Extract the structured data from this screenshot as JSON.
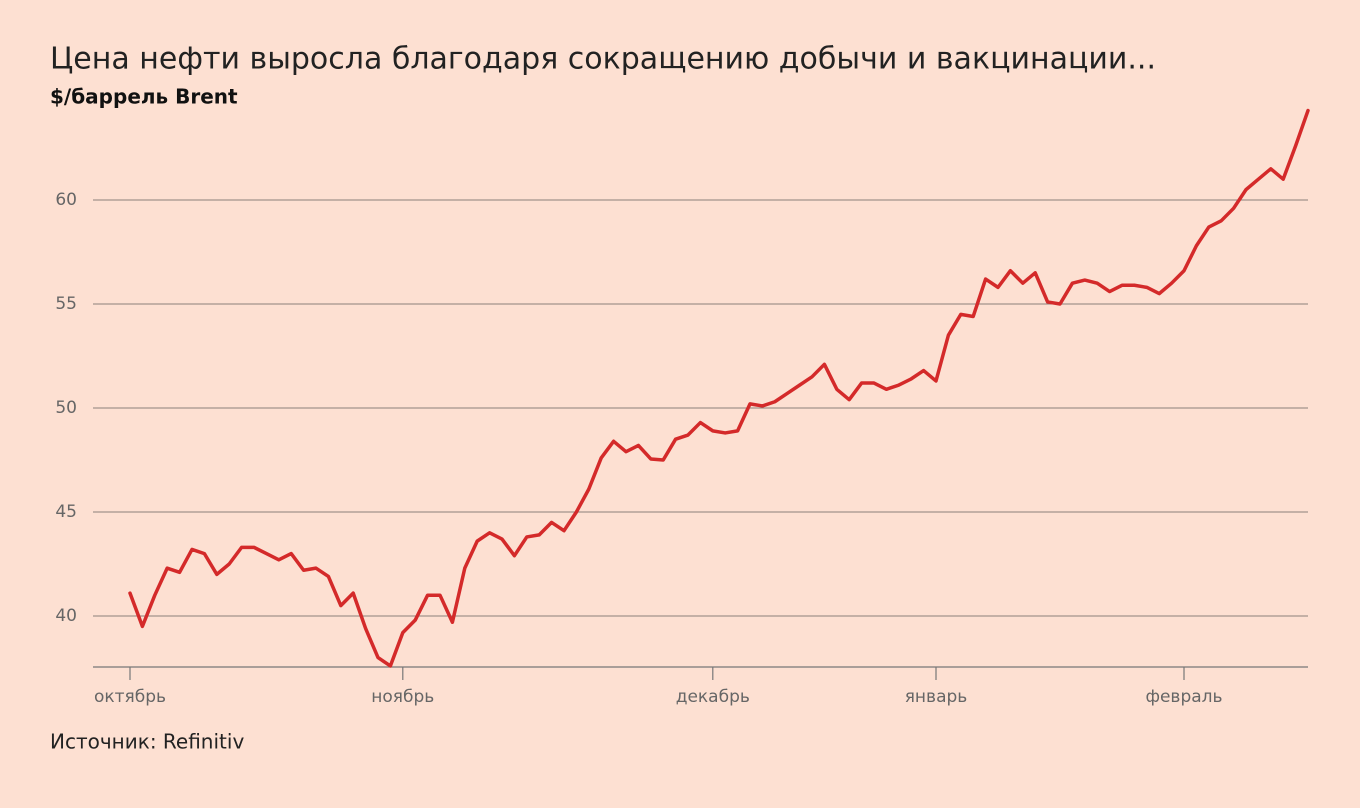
{
  "chart_data": {
    "type": "line",
    "title": "Цена нефти выросла благодаря сокращению добычи и вакцинации...",
    "subtitle": "$/баррель Brent",
    "source": "Источник: Refinitiv",
    "categories": [
      "октябрь",
      null,
      null,
      null,
      null,
      null,
      null,
      null,
      null,
      null,
      null,
      null,
      null,
      null,
      null,
      null,
      null,
      null,
      null,
      null,
      null,
      null,
      "ноябрь",
      null,
      null,
      null,
      null,
      null,
      null,
      null,
      null,
      null,
      null,
      null,
      null,
      null,
      null,
      null,
      null,
      null,
      null,
      null,
      null,
      null,
      null,
      null,
      null,
      "декабрь",
      null,
      null,
      null,
      null,
      null,
      null,
      null,
      null,
      null,
      null,
      null,
      null,
      null,
      null,
      null,
      null,
      null,
      "январь",
      null,
      null,
      null,
      null,
      null,
      null,
      null,
      null,
      null,
      null,
      null,
      null,
      null,
      null,
      null,
      null,
      null,
      null,
      null,
      "февраль",
      null,
      null,
      null,
      null,
      null,
      null,
      null,
      null,
      null,
      null
    ],
    "series": [
      {
        "color": "#d42a2a",
        "values": [
          41.1,
          39.5,
          41.0,
          42.3,
          42.1,
          43.2,
          43.0,
          42.0,
          42.5,
          43.3,
          43.3,
          43.0,
          42.7,
          43.0,
          42.2,
          42.3,
          41.9,
          40.5,
          41.1,
          39.4,
          38.0,
          37.6,
          39.2,
          39.8,
          41.0,
          41.0,
          39.7,
          42.3,
          43.6,
          44.0,
          43.7,
          42.9,
          43.8,
          43.9,
          44.5,
          44.1,
          45.0,
          46.1,
          47.6,
          48.4,
          47.9,
          48.2,
          47.55,
          47.5,
          48.5,
          48.7,
          49.3,
          48.9,
          48.8,
          48.9,
          50.2,
          50.1,
          50.3,
          50.7,
          51.1,
          51.5,
          52.1,
          50.9,
          50.4,
          51.2,
          51.2,
          50.9,
          51.1,
          51.4,
          51.8,
          51.3,
          53.5,
          54.5,
          54.4,
          56.2,
          55.8,
          56.6,
          56.0,
          56.5,
          55.1,
          55.0,
          56.0,
          56.15,
          56.0,
          55.6,
          55.9,
          55.9,
          55.8,
          55.5,
          56.0,
          56.6,
          57.8,
          58.7,
          59.0,
          59.6,
          60.5,
          61.0,
          61.5,
          61.0,
          62.6,
          64.3
        ]
      }
    ],
    "ylim": [
      37.5,
      64.5
    ],
    "yticks": [
      40,
      45,
      50,
      55,
      60
    ],
    "grid": true
  }
}
